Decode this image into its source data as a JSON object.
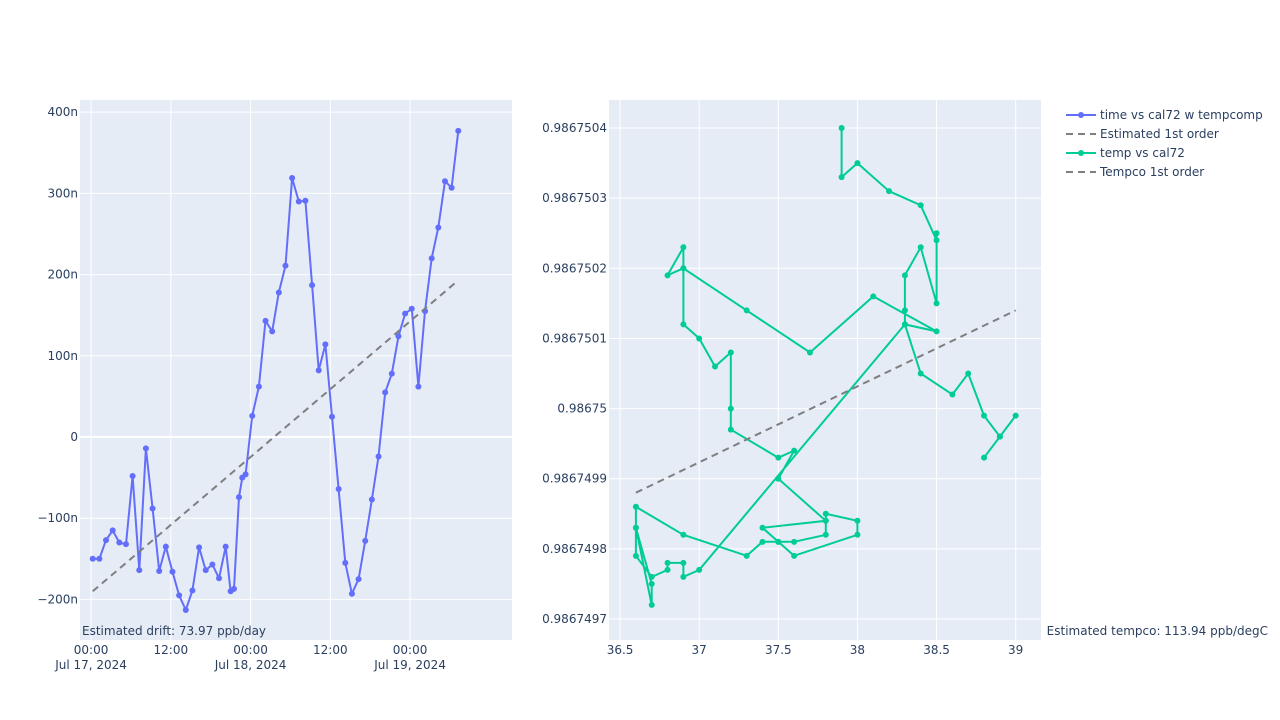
{
  "chart_data": [
    {
      "type": "scatter",
      "mode": "lines+markers",
      "background": "#E5ECF6",
      "grid": true,
      "x_type": "date",
      "x_range": [
        "2024-07-16 22:20",
        "2024-07-19 15:20"
      ],
      "x_ticks": [
        {
          "value": "2024-07-17 00:00",
          "label": "00:00",
          "sublabel": "Jul 17, 2024"
        },
        {
          "value": "2024-07-17 12:00",
          "label": "12:00",
          "sublabel": ""
        },
        {
          "value": "2024-07-18 00:00",
          "label": "00:00",
          "sublabel": "Jul 18, 2024"
        },
        {
          "value": "2024-07-18 12:00",
          "label": "12:00",
          "sublabel": ""
        },
        {
          "value": "2024-07-19 00:00",
          "label": "00:00",
          "sublabel": "Jul 19, 2024"
        }
      ],
      "y_range": [
        -2.5e-07,
        4.15e-07
      ],
      "y_ticks": [
        {
          "value": -2e-07,
          "label": "−200n"
        },
        {
          "value": -1e-07,
          "label": "−100n"
        },
        {
          "value": 0,
          "label": "0"
        },
        {
          "value": 1e-07,
          "label": "100n"
        },
        {
          "value": 2e-07,
          "label": "200n"
        },
        {
          "value": 3e-07,
          "label": "300n"
        },
        {
          "value": 4e-07,
          "label": "400n"
        }
      ],
      "series": [
        {
          "name": "time vs cal72 w tempcomp",
          "color": "#636EFA",
          "mode": "lines+markers",
          "x": [
            "2024-07-17 00:15",
            "2024-07-17 01:15",
            "2024-07-17 02:15",
            "2024-07-17 03:15",
            "2024-07-17 04:15",
            "2024-07-17 05:15",
            "2024-07-17 06:15",
            "2024-07-17 07:15",
            "2024-07-17 08:15",
            "2024-07-17 09:15",
            "2024-07-17 10:15",
            "2024-07-17 11:15",
            "2024-07-17 12:15",
            "2024-07-17 13:15",
            "2024-07-17 14:15",
            "2024-07-17 15:15",
            "2024-07-17 16:15",
            "2024-07-17 17:15",
            "2024-07-17 18:15",
            "2024-07-17 19:15",
            "2024-07-17 20:15",
            "2024-07-17 21:00",
            "2024-07-17 21:30",
            "2024-07-17 22:15",
            "2024-07-17 22:45",
            "2024-07-17 23:15",
            "2024-07-18 00:15",
            "2024-07-18 01:15",
            "2024-07-18 02:15",
            "2024-07-18 03:15",
            "2024-07-18 04:15",
            "2024-07-18 05:15",
            "2024-07-18 06:15",
            "2024-07-18 07:15",
            "2024-07-18 08:15",
            "2024-07-18 09:15",
            "2024-07-18 10:15",
            "2024-07-18 11:15",
            "2024-07-18 12:15",
            "2024-07-18 13:15",
            "2024-07-18 14:15",
            "2024-07-18 15:15",
            "2024-07-18 16:15",
            "2024-07-18 17:15",
            "2024-07-18 18:15",
            "2024-07-18 19:15",
            "2024-07-18 20:15",
            "2024-07-18 21:15",
            "2024-07-18 22:15",
            "2024-07-18 23:15",
            "2024-07-19 00:15",
            "2024-07-19 01:15",
            "2024-07-19 02:15",
            "2024-07-19 03:15",
            "2024-07-19 04:15",
            "2024-07-19 05:15",
            "2024-07-19 06:15",
            "2024-07-19 07:15"
          ],
          "y": [
            -1.5e-07,
            -1.5e-07,
            -1.27e-07,
            -1.15e-07,
            -1.3e-07,
            -1.32e-07,
            -4.8e-08,
            -1.64e-07,
            -1.4e-08,
            -8.8e-08,
            -1.65e-07,
            -1.35e-07,
            -1.66e-07,
            -1.95e-07,
            -2.13e-07,
            -1.89e-07,
            -1.36e-07,
            -1.64e-07,
            -1.57e-07,
            -1.74e-07,
            -1.35e-07,
            -1.9e-07,
            -1.87e-07,
            -7.4e-08,
            -5e-08,
            -4.6e-08,
            2.6e-08,
            6.2e-08,
            1.43e-07,
            1.3e-07,
            1.78e-07,
            2.11e-07,
            3.19e-07,
            2.9e-07,
            2.91e-07,
            1.87e-07,
            8.2e-08,
            1.14e-07,
            2.5e-08,
            -6.4e-08,
            -1.55e-07,
            -1.93e-07,
            -1.75e-07,
            -1.28e-07,
            -7.7e-08,
            -2.4e-08,
            5.5e-08,
            7.8e-08,
            1.24e-07,
            1.52e-07,
            1.58e-07,
            6.2e-08,
            1.55e-07,
            2.2e-07,
            2.58e-07,
            3.15e-07,
            3.07e-07,
            3.77e-07
          ]
        },
        {
          "name": "Estimated 1st order",
          "color": "#7F7F7F",
          "mode": "lines",
          "dash": "dash",
          "x": [
            "2024-07-17 00:15",
            "2024-07-19 07:15"
          ],
          "y": [
            -1.9e-07,
            1.93e-07
          ]
        }
      ],
      "annotations": [
        {
          "text": "Estimated drift:  73.97 ppb/day",
          "position": "bottom-left"
        }
      ]
    },
    {
      "type": "scatter",
      "mode": "lines+markers",
      "background": "#E5ECF6",
      "grid": true,
      "x_range": [
        36.43,
        39.16
      ],
      "x_ticks": [
        {
          "value": 36.5,
          "label": "36.5"
        },
        {
          "value": 37,
          "label": "37"
        },
        {
          "value": 37.5,
          "label": "37.5"
        },
        {
          "value": 38,
          "label": "38"
        },
        {
          "value": 38.5,
          "label": "38.5"
        },
        {
          "value": 39,
          "label": "39"
        }
      ],
      "y_range": [
        0.98674967,
        0.98675044
      ],
      "y_ticks": [
        {
          "value": 0.9867497,
          "label": "0.9867497"
        },
        {
          "value": 0.9867498,
          "label": "0.9867498"
        },
        {
          "value": 0.9867499,
          "label": "0.9867499"
        },
        {
          "value": 0.98675,
          "label": "0.98675"
        },
        {
          "value": 0.9867501,
          "label": "0.9867501"
        },
        {
          "value": 0.9867502,
          "label": "0.9867502"
        },
        {
          "value": 0.9867503,
          "label": "0.9867503"
        },
        {
          "value": 0.9867504,
          "label": "0.9867504"
        }
      ],
      "series": [
        {
          "name": "temp vs cal72",
          "color": "#00CC96",
          "mode": "lines+markers",
          "x": [
            37.9,
            37.9,
            38.0,
            38.2,
            38.4,
            38.5,
            38.5,
            38.5,
            38.4,
            38.3,
            38.3,
            38.3,
            38.5,
            38.1,
            37.7,
            37.3,
            36.9,
            36.9,
            36.8,
            36.9,
            36.9,
            37.0,
            37.1,
            37.2,
            37.2,
            37.2,
            37.5,
            37.6,
            37.5,
            37.8,
            37.8,
            37.6,
            37.5,
            37.4,
            37.8,
            37.8,
            38.0,
            38.0,
            37.6,
            37.5,
            37.4,
            37.3,
            36.9,
            36.6,
            36.6,
            36.7,
            36.7,
            36.6,
            36.6,
            36.7,
            36.8,
            36.8,
            36.9,
            36.9,
            37.0,
            38.3,
            38.4,
            38.6,
            38.7,
            38.8,
            38.9,
            39.0,
            38.9,
            38.8
          ],
          "y": [
            0.9867504,
            0.98675033,
            0.98675035,
            0.98675031,
            0.98675029,
            0.98675024,
            0.98675025,
            0.98675015,
            0.98675023,
            0.98675019,
            0.98675014,
            0.98675012,
            0.98675011,
            0.98675016,
            0.98675008,
            0.98675014,
            0.9867502,
            0.98675023,
            0.98675019,
            0.9867502,
            0.98675012,
            0.9867501,
            0.98675006,
            0.98675008,
            0.98675,
            0.98674997,
            0.98674993,
            0.98674994,
            0.9867499,
            0.98674984,
            0.98674982,
            0.98674981,
            0.98674981,
            0.98674983,
            0.98674984,
            0.98674985,
            0.98674984,
            0.98674982,
            0.98674979,
            0.98674981,
            0.98674981,
            0.98674979,
            0.98674982,
            0.98674986,
            0.98674983,
            0.98674972,
            0.98674975,
            0.98674983,
            0.98674979,
            0.98674976,
            0.98674977,
            0.98674978,
            0.98674978,
            0.98674976,
            0.98674977,
            0.98675012,
            0.98675005,
            0.98675002,
            0.98675005,
            0.98674999,
            0.98674996,
            0.98674999,
            0.98674996,
            0.98674993
          ]
        },
        {
          "name": "Tempco 1st order",
          "color": "#7F7F7F",
          "mode": "lines",
          "dash": "dash",
          "x": [
            36.6,
            39.0
          ],
          "y": [
            0.98674988,
            0.98675014
          ]
        }
      ],
      "annotations": [
        {
          "text": "Estimated tempco:  113.94 ppb/degC",
          "position": "bottom-right"
        }
      ]
    }
  ],
  "legend": {
    "placement": "top-right",
    "items": [
      {
        "name": "time vs cal72 w tempcomp",
        "color": "#636EFA",
        "style": "lines+markers"
      },
      {
        "name": "Estimated 1st order",
        "color": "#7F7F7F",
        "style": "dash"
      },
      {
        "name": "temp vs cal72",
        "color": "#00CC96",
        "style": "lines+markers"
      },
      {
        "name": "Tempco 1st order",
        "color": "#7F7F7F",
        "style": "dash"
      }
    ]
  }
}
